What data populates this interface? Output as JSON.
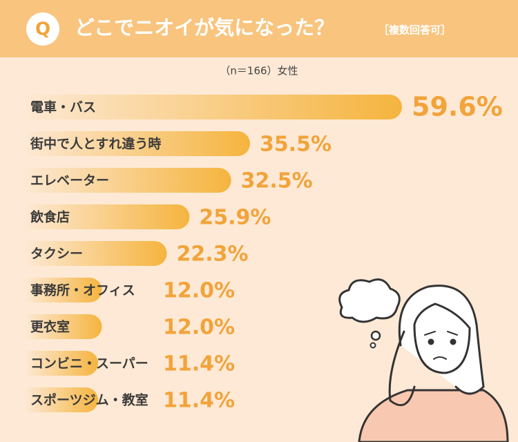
{
  "chart_data": {
    "type": "bar",
    "q_badge": "Q",
    "title": "どこでニオイが気になった？",
    "subtitle": "［複数回答可］",
    "note": "（n＝166）女性",
    "categories": [
      "電車・バス",
      "街中で人とすれ違う時",
      "エレベーター",
      "飲食店",
      "タクシー",
      "事務所・オフィス",
      "更衣室",
      "コンビニ・スーパー",
      "スポーツジム・教室"
    ],
    "values": [
      59.6,
      35.5,
      32.5,
      25.9,
      22.3,
      12.0,
      12.0,
      11.4,
      11.4
    ],
    "value_labels": [
      "59.6%",
      "35.5%",
      "32.5%",
      "25.9%",
      "22.3%",
      "12.0%",
      "12.0%",
      "11.4%",
      "11.4%"
    ],
    "color": "#f5b43e"
  }
}
